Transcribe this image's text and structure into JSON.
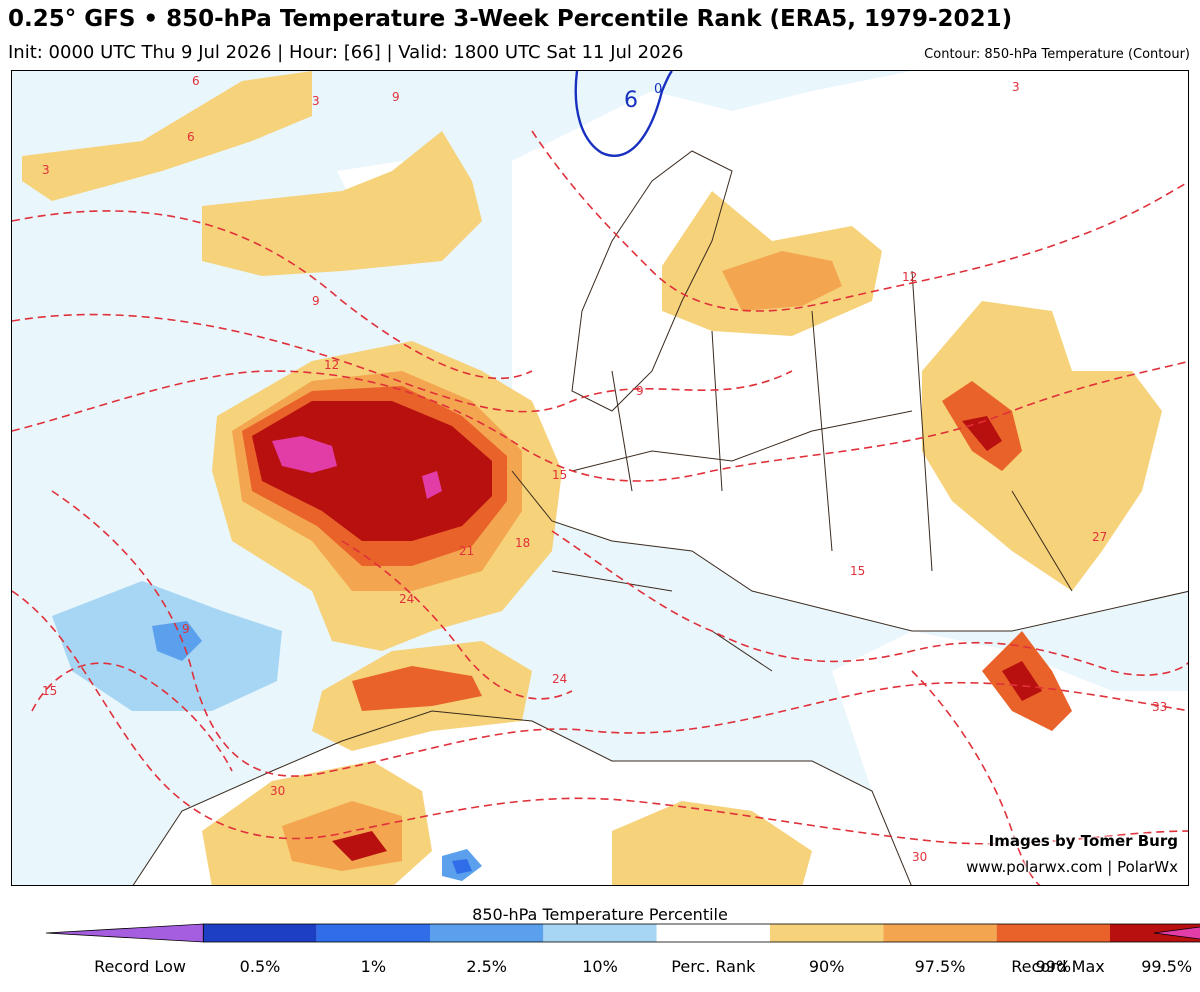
{
  "header": {
    "title": "0.25° GFS • 850-hPa Temperature 3-Week Percentile Rank (ERA5, 1979-2021)",
    "subtitle": "Init: 0000 UTC Thu 9 Jul 2026 | Hour: [66] | Valid: 1800 UTC Sat 11 Jul 2026",
    "contour_note": "Contour: 850-hPa Temperature (Contour)"
  },
  "credits": {
    "line1": "Images by Tomer Burg",
    "line2": "www.polarwx.com | PolarWx"
  },
  "colorbar": {
    "title": "850-hPa Temperature Percentile",
    "labels": [
      "Record Low",
      "0.5%",
      "1%",
      "2.5%",
      "10%",
      "Perc. Rank",
      "90%",
      "97.5%",
      "99%",
      "99.5%",
      "Record Max"
    ],
    "colors": [
      "#a55ee0",
      "#1d3fc4",
      "#2f6ee8",
      "#5aa0ec",
      "#a7d6f4",
      "#ffffff",
      "#f6d27a",
      "#f3a550",
      "#e8622a",
      "#b80f0f",
      "#e23ca6"
    ]
  },
  "map": {
    "contour_labels": [
      "6",
      "3",
      "9",
      "12",
      "15",
      "18",
      "21",
      "24",
      "27",
      "30",
      "33",
      "0"
    ],
    "colors": {
      "background_low": "#e9f6fc",
      "contour": "#e0303a",
      "cold_contour": "#1830c0",
      "borders": "#3a2a1e"
    }
  }
}
